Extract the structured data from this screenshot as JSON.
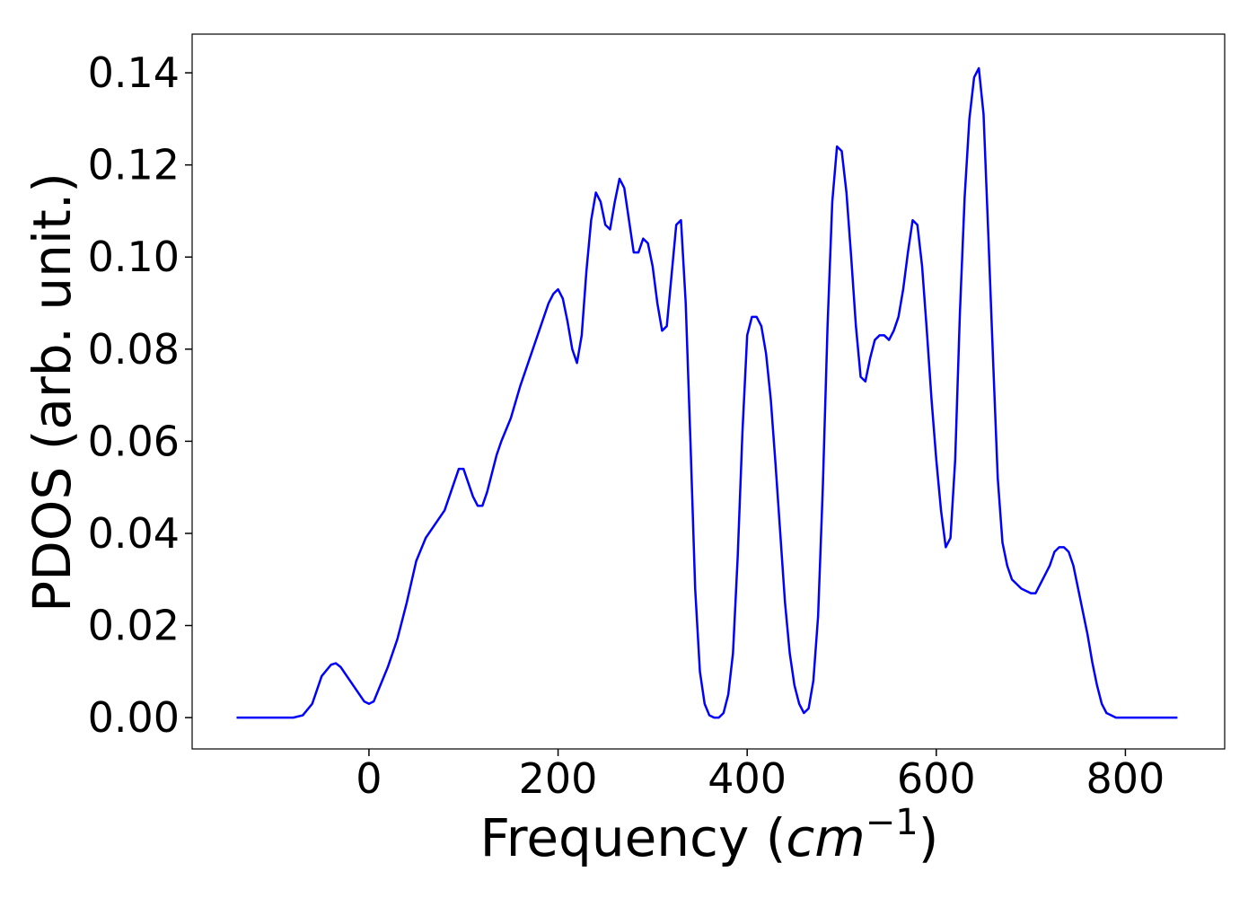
{
  "chart_data": {
    "type": "line",
    "x_label": [
      "Frequency (",
      "cm",
      "−1",
      ")"
    ],
    "y_label": "PDOS (arb. unit.)",
    "xlim": [
      -187,
      905
    ],
    "ylim": [
      -0.0068,
      0.1484
    ],
    "xticks": [
      0,
      200,
      400,
      600,
      800
    ],
    "yticks": [
      {
        "value": 0,
        "label": "0.00"
      },
      {
        "value": 0.02,
        "label": "0.02"
      },
      {
        "value": 0.04,
        "label": "0.04"
      },
      {
        "value": 0.06,
        "label": "0.06"
      },
      {
        "value": 0.08,
        "label": "0.08"
      },
      {
        "value": 0.1,
        "label": "0.10"
      },
      {
        "value": 0.12,
        "label": "0.12"
      },
      {
        "value": 0.14,
        "label": "0.14"
      }
    ],
    "x": [
      -140,
      -80,
      -70,
      -60,
      -50,
      -40,
      -35,
      -30,
      -20,
      -10,
      -5,
      0,
      5,
      10,
      20,
      30,
      40,
      50,
      60,
      70,
      80,
      90,
      95,
      100,
      105,
      110,
      115,
      120,
      125,
      130,
      135,
      140,
      150,
      160,
      170,
      180,
      190,
      195,
      200,
      205,
      210,
      215,
      220,
      225,
      230,
      235,
      240,
      245,
      250,
      255,
      260,
      265,
      270,
      275,
      280,
      285,
      290,
      295,
      300,
      305,
      310,
      315,
      320,
      325,
      330,
      335,
      340,
      345,
      350,
      355,
      360,
      365,
      370,
      375,
      380,
      385,
      390,
      395,
      400,
      405,
      410,
      415,
      420,
      425,
      430,
      435,
      440,
      445,
      450,
      455,
      460,
      465,
      470,
      475,
      480,
      485,
      490,
      495,
      500,
      505,
      510,
      515,
      520,
      525,
      530,
      535,
      540,
      545,
      550,
      555,
      560,
      565,
      570,
      575,
      580,
      585,
      590,
      595,
      600,
      605,
      610,
      615,
      620,
      625,
      630,
      635,
      640,
      645,
      650,
      655,
      660,
      665,
      670,
      675,
      680,
      690,
      700,
      705,
      710,
      720,
      725,
      730,
      735,
      740,
      745,
      750,
      760,
      765,
      770,
      775,
      780,
      790,
      855
    ],
    "series": [
      {
        "name": "PDOS",
        "color": "#0000ff",
        "values": [
          0,
          0,
          0.0005,
          0.003,
          0.009,
          0.0115,
          0.0118,
          0.011,
          0.008,
          0.005,
          0.0035,
          0.003,
          0.0035,
          0.006,
          0.011,
          0.017,
          0.025,
          0.034,
          0.039,
          0.042,
          0.045,
          0.051,
          0.054,
          0.054,
          0.051,
          0.048,
          0.046,
          0.046,
          0.049,
          0.053,
          0.057,
          0.06,
          0.065,
          0.072,
          0.078,
          0.084,
          0.09,
          0.092,
          0.093,
          0.091,
          0.086,
          0.08,
          0.077,
          0.083,
          0.097,
          0.108,
          0.114,
          0.112,
          0.107,
          0.106,
          0.112,
          0.117,
          0.115,
          0.108,
          0.101,
          0.101,
          0.104,
          0.103,
          0.098,
          0.09,
          0.084,
          0.085,
          0.096,
          0.107,
          0.108,
          0.09,
          0.06,
          0.028,
          0.01,
          0.003,
          0.0005,
          0,
          0,
          0.001,
          0.005,
          0.014,
          0.035,
          0.062,
          0.083,
          0.087,
          0.087,
          0.085,
          0.079,
          0.069,
          0.055,
          0.04,
          0.025,
          0.014,
          0.007,
          0.003,
          0.001,
          0.002,
          0.008,
          0.022,
          0.05,
          0.085,
          0.112,
          0.124,
          0.123,
          0.114,
          0.1,
          0.085,
          0.074,
          0.073,
          0.078,
          0.082,
          0.083,
          0.083,
          0.082,
          0.084,
          0.087,
          0.093,
          0.101,
          0.108,
          0.107,
          0.098,
          0.084,
          0.069,
          0.056,
          0.045,
          0.037,
          0.039,
          0.056,
          0.088,
          0.113,
          0.13,
          0.139,
          0.141,
          0.131,
          0.105,
          0.078,
          0.052,
          0.038,
          0.033,
          0.03,
          0.028,
          0.027,
          0.027,
          0.029,
          0.033,
          0.036,
          0.037,
          0.037,
          0.036,
          0.033,
          0.028,
          0.018,
          0.012,
          0.007,
          0.003,
          0.001,
          0,
          0
        ]
      }
    ]
  }
}
